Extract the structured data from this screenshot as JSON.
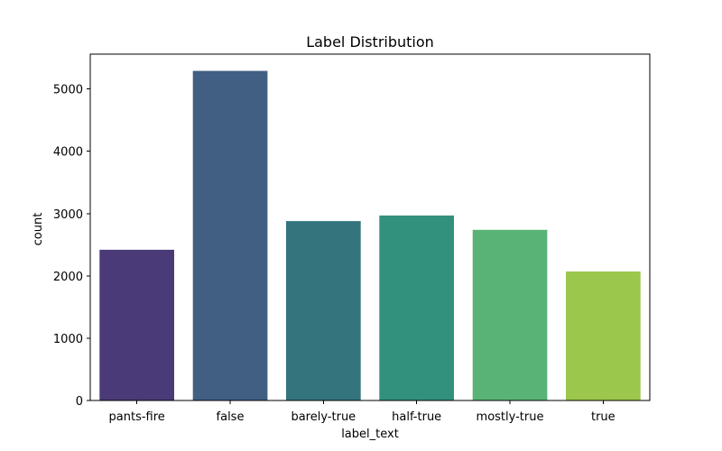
{
  "chart_data": {
    "type": "bar",
    "title": "Label Distribution",
    "xlabel": "label_text",
    "ylabel": "count",
    "categories": [
      "pants-fire",
      "false",
      "barely-true",
      "half-true",
      "mostly-true",
      "true"
    ],
    "values": [
      2420,
      5290,
      2880,
      2970,
      2740,
      2070
    ],
    "colors": [
      "#4b3a78",
      "#415f83",
      "#33747d",
      "#32917d",
      "#5ab376",
      "#9bc74c"
    ],
    "ylim": [
      0,
      5560
    ],
    "yticks": [
      0,
      1000,
      2000,
      3000,
      4000,
      5000
    ],
    "grid": false,
    "legend": "none"
  }
}
